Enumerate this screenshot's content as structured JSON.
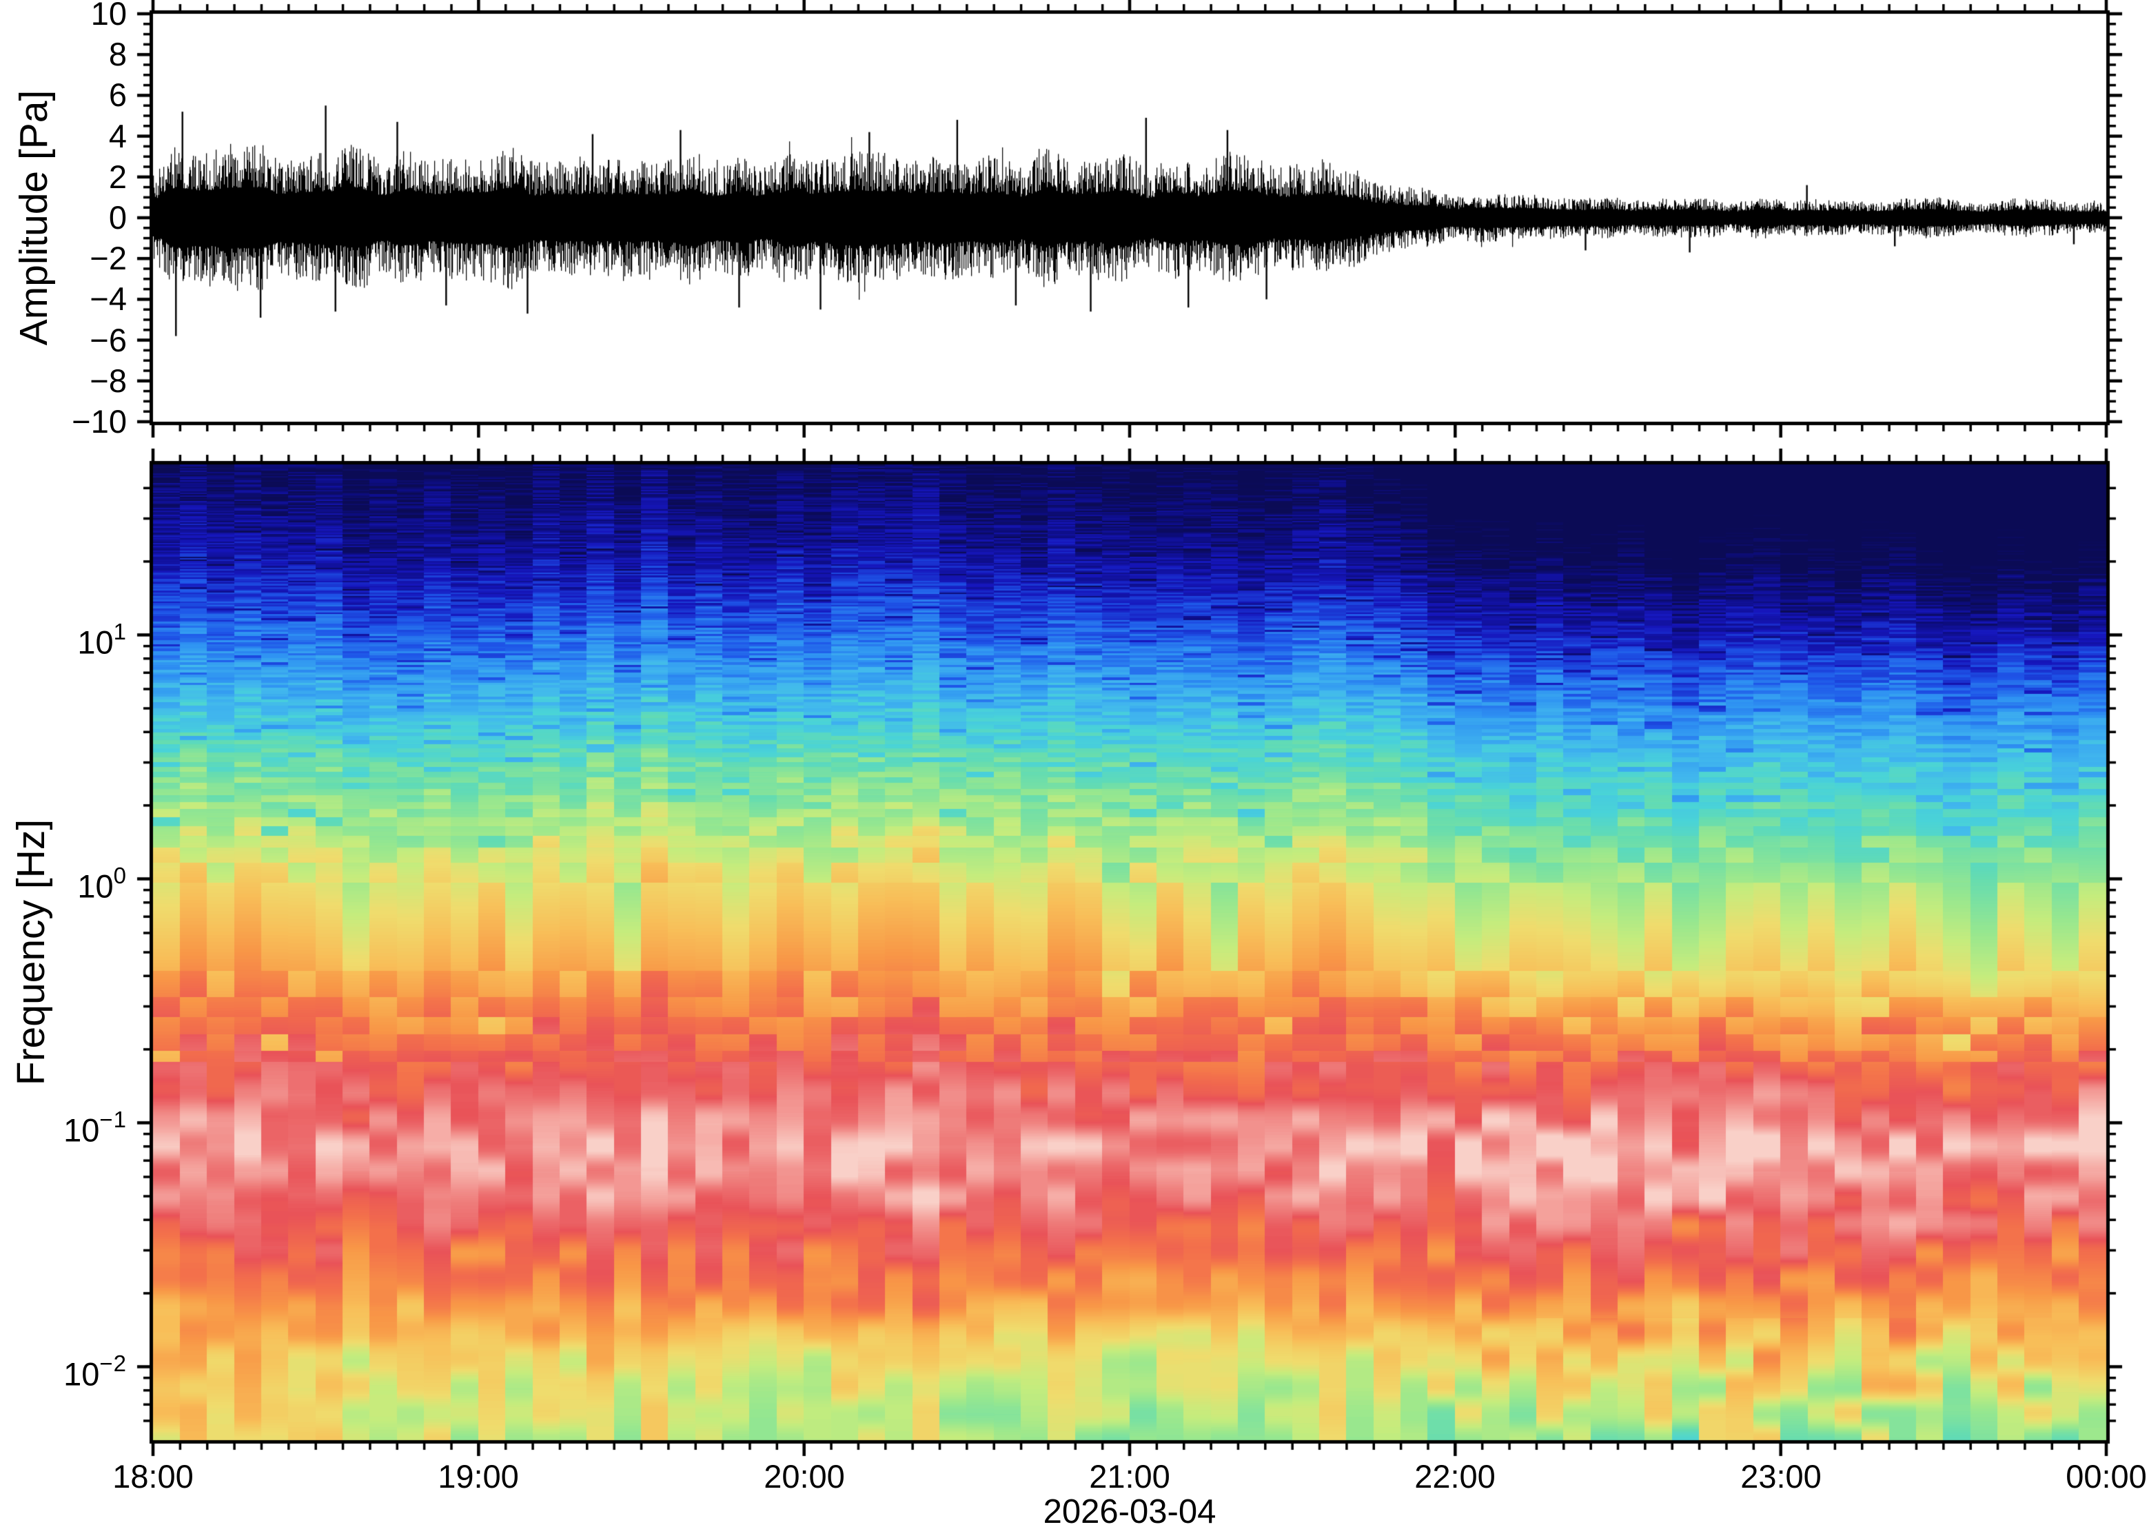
{
  "figure": {
    "background": "#ffffff",
    "frame_color": "#000000",
    "panels": [
      "waveform",
      "spectrogram"
    ]
  },
  "chart_data": [
    {
      "type": "line",
      "name": "pressure-waveform",
      "ylabel": "Amplitude [Pa]",
      "ylim": [
        -10,
        10
      ],
      "ytick_step_major": 2,
      "ytick_step_minor": 0.5,
      "ytick_labels": [
        "10",
        "8",
        "6",
        "4",
        "2",
        "0",
        "−2",
        "−4",
        "−6",
        "−8",
        "−10"
      ],
      "x_span_hours": 6,
      "x_start_label": "18:00",
      "x_end_label": "00:00",
      "xtick_minor_minutes": 5,
      "line_color": "#000000",
      "envelope_pa": [
        [
          0,
          2.4
        ],
        [
          0.06,
          3.2
        ],
        [
          0.3,
          3.3
        ],
        [
          0.6,
          3.4
        ],
        [
          1.0,
          3.2
        ],
        [
          1.5,
          3.05
        ],
        [
          2.0,
          2.95
        ],
        [
          2.5,
          2.95
        ],
        [
          3.0,
          2.9
        ],
        [
          3.3,
          3.0
        ],
        [
          3.55,
          2.7
        ],
        [
          3.7,
          2.1
        ],
        [
          3.85,
          1.55
        ],
        [
          4.0,
          1.2
        ],
        [
          4.2,
          1.02
        ],
        [
          4.5,
          0.95
        ],
        [
          5.0,
          0.9
        ],
        [
          5.5,
          0.88
        ],
        [
          6.0,
          0.85
        ]
      ],
      "spikes_pa": [
        [
          0.07,
          -5.8
        ],
        [
          0.09,
          5.2
        ],
        [
          0.33,
          -4.9
        ],
        [
          0.53,
          5.5
        ],
        [
          0.56,
          -4.6
        ],
        [
          0.75,
          4.7
        ],
        [
          0.9,
          -4.3
        ],
        [
          1.15,
          -4.7
        ],
        [
          1.35,
          4.1
        ],
        [
          1.62,
          4.3
        ],
        [
          1.8,
          -4.4
        ],
        [
          2.05,
          -4.5
        ],
        [
          2.2,
          4.2
        ],
        [
          2.47,
          4.8
        ],
        [
          2.65,
          -4.3
        ],
        [
          2.88,
          -4.6
        ],
        [
          3.05,
          4.9
        ],
        [
          3.18,
          -4.4
        ],
        [
          3.3,
          4.3
        ],
        [
          3.42,
          -4.0
        ],
        [
          4.4,
          -1.6
        ],
        [
          4.72,
          -1.7
        ],
        [
          5.08,
          1.6
        ],
        [
          5.35,
          -1.4
        ],
        [
          5.9,
          -1.3
        ]
      ],
      "noise_seed": 42
    },
    {
      "type": "heatmap",
      "name": "spectrogram",
      "ylabel": "Frequency [Hz]",
      "yscale": "log",
      "ylim_hz": [
        0.005,
        50
      ],
      "ytick_labels": [
        {
          "base": "10",
          "exp": "1"
        },
        {
          "base": "10",
          "exp": "0"
        },
        {
          "base": "10",
          "exp": "−1"
        },
        {
          "base": "10",
          "exp": "−2"
        }
      ],
      "ytick_exponents": [
        1,
        0,
        -1,
        -2
      ],
      "xtick_labels": [
        "18:00",
        "19:00",
        "20:00",
        "21:00",
        "22:00",
        "23:00",
        "00:00"
      ],
      "xlabel": "2026-03-04",
      "time_bin_minutes": 5,
      "colormap": [
        [
          0.0,
          "#0b0b55"
        ],
        [
          0.05,
          "#0d0d84"
        ],
        [
          0.11,
          "#1616bc"
        ],
        [
          0.18,
          "#1e55e8"
        ],
        [
          0.25,
          "#2f92f2"
        ],
        [
          0.32,
          "#41b6ee"
        ],
        [
          0.38,
          "#49d3d8"
        ],
        [
          0.44,
          "#65dcb0"
        ],
        [
          0.5,
          "#97e78f"
        ],
        [
          0.55,
          "#c6ec7d"
        ],
        [
          0.6,
          "#efdc6d"
        ],
        [
          0.66,
          "#f8bd58"
        ],
        [
          0.72,
          "#f89847"
        ],
        [
          0.78,
          "#f3704b"
        ],
        [
          0.84,
          "#e95358"
        ],
        [
          0.9,
          "#ef7f7d"
        ],
        [
          0.95,
          "#f5a8a2"
        ],
        [
          1.0,
          "#f9d0c8"
        ]
      ],
      "power_profile_logf_v": [
        [
          1.7,
          0.015
        ],
        [
          1.48,
          0.06
        ],
        [
          1.3,
          0.1
        ],
        [
          1.0,
          0.21
        ],
        [
          0.7,
          0.34
        ],
        [
          0.48,
          0.44
        ],
        [
          0.3,
          0.5
        ],
        [
          0.0,
          0.6
        ],
        [
          -0.22,
          0.66
        ],
        [
          -0.4,
          0.71
        ],
        [
          -0.6,
          0.78
        ],
        [
          -0.82,
          0.85
        ],
        [
          -1.1,
          0.94
        ],
        [
          -1.3,
          0.9
        ],
        [
          -1.52,
          0.8
        ],
        [
          -1.7,
          0.74
        ],
        [
          -1.92,
          0.64
        ],
        [
          -2.1,
          0.6
        ],
        [
          -2.3,
          0.575
        ]
      ],
      "event": {
        "start_hour": 3.55,
        "transition_hours": 0.75,
        "delta_high": 0.1,
        "delta_low": 0.07,
        "trend_high": 0.035
      },
      "texture": {
        "stripe_amp": 0.045,
        "band_logf": [
          -1.65,
          -0.65
        ],
        "band_amp": 0.07,
        "band_amp_post_extra": 0.03,
        "smooth_grid_decades": 0.11,
        "smooth_zone_logf": -0.75,
        "low_amp": 0.055,
        "low_amp_post_extra": 0.04,
        "column_amp": 0.045,
        "seed": 7
      }
    }
  ]
}
